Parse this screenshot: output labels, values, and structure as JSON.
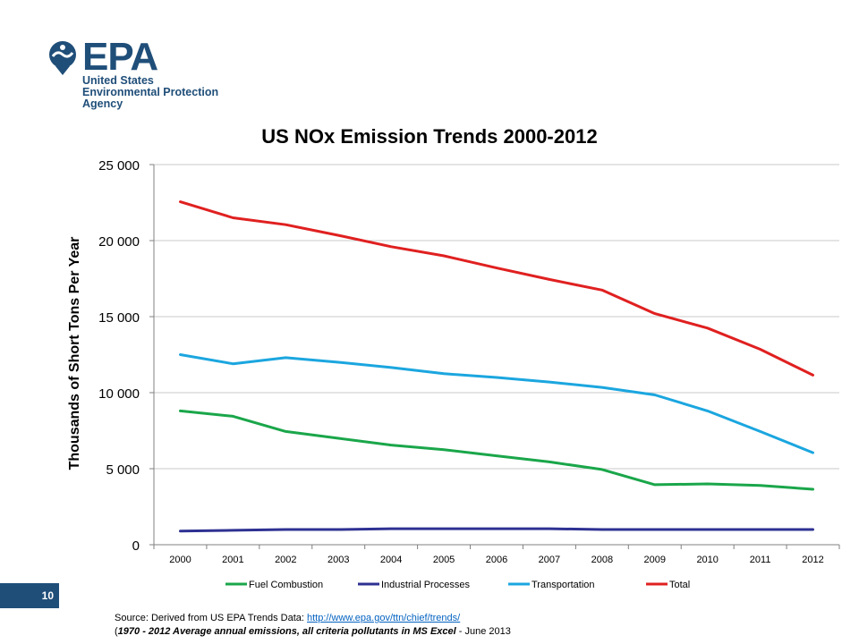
{
  "logo": {
    "word": "EPA",
    "line1": "United States",
    "line2": "Environmental Protection",
    "line3": "Agency"
  },
  "colors": {
    "brand": "#1f4e79",
    "grid": "#c8c8c8",
    "axis": "#808080"
  },
  "chart_data": {
    "type": "line",
    "title": "US NOx Emission Trends 2000-2012",
    "xlabel": "",
    "ylabel": "Thousands of Short Tons Per Year",
    "ylim": [
      0,
      25000
    ],
    "ytick_values": [
      0,
      5000,
      10000,
      15000,
      20000,
      25000
    ],
    "ytick_labels": [
      "0",
      "5 000",
      "10 000",
      "15 000",
      "20 000",
      "25 000"
    ],
    "grid": true,
    "legend_position": "bottom",
    "x": [
      "2000",
      "2001",
      "2002",
      "2003",
      "2004",
      "2005",
      "2006",
      "2007",
      "2008",
      "2009",
      "2010",
      "2011",
      "2012"
    ],
    "series": [
      {
        "name": "Fuel Combustion",
        "color": "#1aa64a",
        "values": [
          8800,
          8450,
          7450,
          7000,
          6550,
          6250,
          5850,
          5450,
          4950,
          3950,
          4000,
          3900,
          3650
        ]
      },
      {
        "name": "Industrial Processes",
        "color": "#2e3192",
        "values": [
          900,
          950,
          1000,
          1000,
          1050,
          1050,
          1050,
          1050,
          1000,
          1000,
          1000,
          1000,
          1000
        ]
      },
      {
        "name": "Transportation",
        "color": "#1ba6df",
        "values": [
          12500,
          11900,
          12300,
          12000,
          11650,
          11250,
          11000,
          10700,
          10350,
          9850,
          8800,
          7450,
          6050
        ]
      },
      {
        "name": "Total",
        "color": "#e02020",
        "values": [
          22550,
          21500,
          21050,
          20350,
          19600,
          19000,
          18200,
          17450,
          16750,
          15200,
          14250,
          12850,
          11150
        ]
      }
    ]
  },
  "page_number": "10",
  "source": {
    "prefix": "Source: Derived from US EPA Trends Data: ",
    "link": "http://www.epa.gov/ttn/chief/trends/",
    "line2_open": "(",
    "line2_bold": "1970 - 2012 Average annual emissions, all criteria pollutants in MS Excel",
    "line2_tail": " - June 2013"
  }
}
